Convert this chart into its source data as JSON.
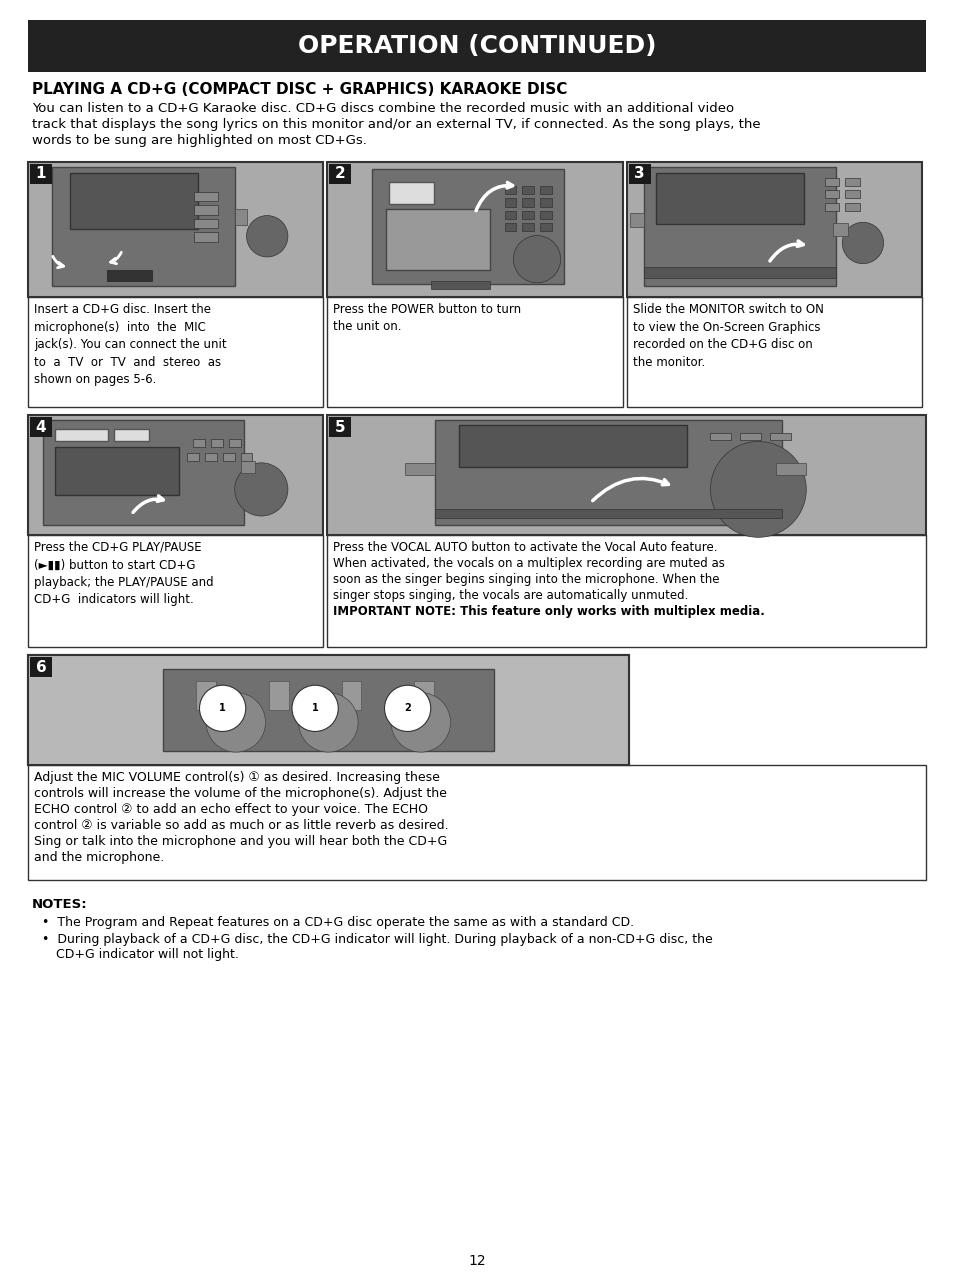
{
  "page_bg": "#ffffff",
  "header_bg": "#222222",
  "header_text": "OPERATION (CONTINUED)",
  "header_text_color": "#ffffff",
  "section_title": "PLAYING A CD+G (COMPACT DISC + GRAPHICS) KARAOKE DISC",
  "intro_lines": [
    "You can listen to a CD+G Karaoke disc. CD+G discs combine the recorded music with an additional video",
    "track that displays the song lyrics on this monitor and/or an external TV, if connected. As the song plays, the",
    "words to be sung are highlighted on most CD+Gs."
  ],
  "cap1": "Insert a CD+G disc. Insert the\nmicrophone(s)  into  the  MIC\njack(s). You can connect the unit\nto  a  TV  or  TV  and  stereo  as\nshown on pages 5-6.",
  "cap2": "Press the POWER button to turn\nthe unit on.",
  "cap3": "Slide the MONITOR switch to ON\nto view the On-Screen Graphics\nrecorded on the CD+G disc on\nthe monitor.",
  "cap4": "Press the CD+G PLAY/PAUSE\n(►▮▮) button to start CD+G\nplayback; the PLAY/PAUSE and\nCD+G  indicators will light.",
  "cap5_normal": "Press the VOCAL AUTO button to activate the Vocal Auto feature.\nWhen activated, the vocals on a multiplex recording are muted as\nsoon as the singer begins singing into the microphone. When the\nsinger stops singing, the vocals are automatically unmuted.",
  "cap5_bold": "IMPORTANT NOTE: This feature only works with multiplex media.",
  "cap6": "Adjust the MIC VOLUME control(s) ① as desired. Increasing these\ncontrols will increase the volume of the microphone(s). Adjust the\nECHO control ② to add an echo effect to your voice. The ECHO\ncontrol ② is variable so add as much or as little reverb as desired.\nSing or talk into the microphone and you will hear both the CD+G\nand the microphone.",
  "notes_title": "NOTES:",
  "note1": "The Program and Repeat features on a CD+G disc operate the same as with a standard CD.",
  "note2_l1": "During playback of a CD+G disc, the CD+G indicator will light. During playback of a non-CD+G disc, the",
  "note2_l2": "CD+G indicator will not light.",
  "page_number": "12",
  "gray_device": "#909090",
  "gray_medium": "#747474",
  "gray_light": "#c0c0c0",
  "gray_dark": "#555555",
  "border_dark": "#333333",
  "label_bg": "#1a1a1a",
  "white": "#ffffff",
  "black": "#000000"
}
